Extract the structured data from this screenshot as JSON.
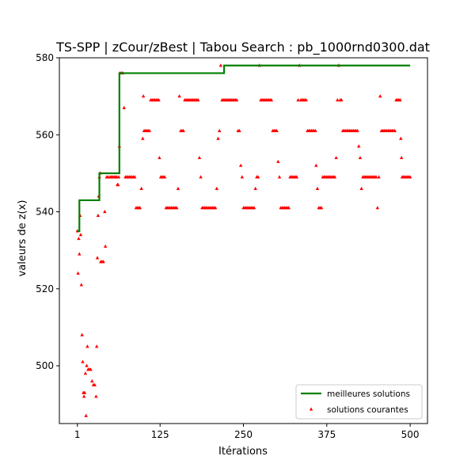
{
  "chart_data": {
    "type": "scatter",
    "title": "TS-SPP | zCour/zBest | Tabou Search : pb_1000rnd0300.dat",
    "xlabel": "Itérations",
    "ylabel": "valeurs de z(x)",
    "xlim": [
      -26,
      526
    ],
    "ylim": [
      485,
      580
    ],
    "xticks": [
      1,
      125,
      250,
      375,
      500
    ],
    "xtick_labels": [
      "1",
      "125",
      "250",
      "375",
      "500"
    ],
    "yticks": [
      500,
      520,
      540,
      560,
      580
    ],
    "ytick_labels": [
      "500",
      "520",
      "540",
      "560",
      "580"
    ],
    "grid": false,
    "legend_position": "lower-right",
    "series": [
      {
        "name": "meilleures solutions",
        "kind": "step-line",
        "color": "#008000",
        "steps": [
          [
            1,
            535
          ],
          [
            4,
            543
          ],
          [
            34,
            550
          ],
          [
            64,
            576
          ],
          [
            221,
            578
          ],
          [
            500,
            578
          ]
        ]
      },
      {
        "name": "solutions courantes",
        "kind": "markers",
        "color": "#ff0000",
        "points": [
          [
            1,
            535
          ],
          [
            2,
            524
          ],
          [
            3,
            533
          ],
          [
            4,
            529
          ],
          [
            5,
            539
          ],
          [
            6,
            534
          ],
          [
            7,
            521
          ],
          [
            8,
            508
          ],
          [
            9,
            501
          ],
          [
            10,
            493
          ],
          [
            11,
            492
          ],
          [
            12,
            493
          ],
          [
            13,
            498
          ],
          [
            14,
            487
          ],
          [
            15,
            500
          ],
          [
            16,
            505
          ],
          [
            17,
            499
          ],
          [
            18,
            499
          ],
          [
            20,
            499
          ],
          [
            21,
            499
          ],
          [
            23,
            496
          ],
          [
            25,
            495
          ],
          [
            27,
            495
          ],
          [
            29,
            492
          ],
          [
            30,
            505
          ],
          [
            31,
            528
          ],
          [
            32,
            539
          ],
          [
            33,
            544
          ],
          [
            34,
            549
          ],
          [
            35,
            550
          ],
          [
            36,
            527
          ],
          [
            38,
            527
          ],
          [
            40,
            527
          ],
          [
            42,
            540
          ],
          [
            43,
            531
          ],
          [
            45,
            549
          ],
          [
            47,
            549
          ],
          [
            50,
            549
          ],
          [
            52,
            549
          ],
          [
            54,
            549
          ],
          [
            56,
            549
          ],
          [
            58,
            549
          ],
          [
            60,
            549
          ],
          [
            61,
            547
          ],
          [
            62,
            547
          ],
          [
            63,
            549
          ],
          [
            64,
            557
          ],
          [
            65,
            576
          ],
          [
            67,
            576
          ],
          [
            69,
            576
          ],
          [
            71,
            567
          ],
          [
            73,
            549
          ],
          [
            75,
            549
          ],
          [
            77,
            549
          ],
          [
            79,
            549
          ],
          [
            81,
            549
          ],
          [
            83,
            549
          ],
          [
            85,
            549
          ],
          [
            87,
            549
          ],
          [
            89,
            541
          ],
          [
            91,
            541
          ],
          [
            93,
            541
          ],
          [
            95,
            541
          ],
          [
            97,
            546
          ],
          [
            99,
            559
          ],
          [
            100,
            570
          ],
          [
            101,
            561
          ],
          [
            103,
            561
          ],
          [
            105,
            561
          ],
          [
            107,
            561
          ],
          [
            109,
            561
          ],
          [
            111,
            569
          ],
          [
            113,
            569
          ],
          [
            115,
            569
          ],
          [
            117,
            569
          ],
          [
            119,
            569
          ],
          [
            121,
            569
          ],
          [
            123,
            569
          ],
          [
            124,
            554
          ],
          [
            126,
            549
          ],
          [
            128,
            549
          ],
          [
            130,
            549
          ],
          [
            132,
            549
          ],
          [
            134,
            541
          ],
          [
            136,
            541
          ],
          [
            138,
            541
          ],
          [
            140,
            541
          ],
          [
            142,
            541
          ],
          [
            144,
            541
          ],
          [
            146,
            541
          ],
          [
            148,
            541
          ],
          [
            150,
            541
          ],
          [
            152,
            546
          ],
          [
            154,
            570
          ],
          [
            156,
            561
          ],
          [
            158,
            561
          ],
          [
            160,
            561
          ],
          [
            162,
            569
          ],
          [
            164,
            569
          ],
          [
            166,
            569
          ],
          [
            168,
            569
          ],
          [
            170,
            569
          ],
          [
            172,
            569
          ],
          [
            174,
            569
          ],
          [
            176,
            569
          ],
          [
            178,
            569
          ],
          [
            180,
            569
          ],
          [
            182,
            569
          ],
          [
            184,
            554
          ],
          [
            186,
            549
          ],
          [
            188,
            541
          ],
          [
            190,
            541
          ],
          [
            192,
            541
          ],
          [
            194,
            541
          ],
          [
            196,
            541
          ],
          [
            198,
            541
          ],
          [
            200,
            541
          ],
          [
            202,
            541
          ],
          [
            204,
            541
          ],
          [
            206,
            541
          ],
          [
            208,
            541
          ],
          [
            210,
            546
          ],
          [
            212,
            559
          ],
          [
            214,
            561
          ],
          [
            216,
            578
          ],
          [
            218,
            569
          ],
          [
            220,
            569
          ],
          [
            222,
            569
          ],
          [
            224,
            569
          ],
          [
            226,
            569
          ],
          [
            228,
            569
          ],
          [
            230,
            569
          ],
          [
            232,
            569
          ],
          [
            234,
            569
          ],
          [
            236,
            569
          ],
          [
            238,
            569
          ],
          [
            240,
            569
          ],
          [
            242,
            561
          ],
          [
            244,
            561
          ],
          [
            246,
            552
          ],
          [
            248,
            549
          ],
          [
            250,
            541
          ],
          [
            252,
            541
          ],
          [
            254,
            541
          ],
          [
            256,
            541
          ],
          [
            258,
            541
          ],
          [
            260,
            541
          ],
          [
            262,
            541
          ],
          [
            264,
            541
          ],
          [
            266,
            541
          ],
          [
            268,
            546
          ],
          [
            270,
            549
          ],
          [
            272,
            549
          ],
          [
            274,
            578
          ],
          [
            276,
            569
          ],
          [
            278,
            569
          ],
          [
            280,
            569
          ],
          [
            282,
            569
          ],
          [
            284,
            569
          ],
          [
            286,
            569
          ],
          [
            288,
            569
          ],
          [
            290,
            569
          ],
          [
            292,
            569
          ],
          [
            294,
            561
          ],
          [
            296,
            561
          ],
          [
            298,
            561
          ],
          [
            300,
            561
          ],
          [
            302,
            553
          ],
          [
            304,
            549
          ],
          [
            306,
            541
          ],
          [
            308,
            541
          ],
          [
            310,
            541
          ],
          [
            312,
            541
          ],
          [
            314,
            541
          ],
          [
            316,
            541
          ],
          [
            318,
            541
          ],
          [
            320,
            549
          ],
          [
            322,
            549
          ],
          [
            324,
            549
          ],
          [
            326,
            549
          ],
          [
            328,
            549
          ],
          [
            330,
            549
          ],
          [
            332,
            569
          ],
          [
            334,
            578
          ],
          [
            336,
            569
          ],
          [
            338,
            569
          ],
          [
            340,
            569
          ],
          [
            342,
            569
          ],
          [
            344,
            569
          ],
          [
            346,
            561
          ],
          [
            348,
            561
          ],
          [
            350,
            561
          ],
          [
            352,
            561
          ],
          [
            354,
            561
          ],
          [
            356,
            561
          ],
          [
            358,
            561
          ],
          [
            359,
            552
          ],
          [
            361,
            546
          ],
          [
            363,
            541
          ],
          [
            365,
            541
          ],
          [
            367,
            541
          ],
          [
            369,
            549
          ],
          [
            371,
            549
          ],
          [
            373,
            549
          ],
          [
            375,
            549
          ],
          [
            377,
            549
          ],
          [
            379,
            549
          ],
          [
            381,
            549
          ],
          [
            383,
            549
          ],
          [
            385,
            549
          ],
          [
            387,
            549
          ],
          [
            389,
            554
          ],
          [
            391,
            569
          ],
          [
            393,
            578
          ],
          [
            395,
            569
          ],
          [
            397,
            569
          ],
          [
            399,
            561
          ],
          [
            401,
            561
          ],
          [
            403,
            561
          ],
          [
            405,
            561
          ],
          [
            407,
            561
          ],
          [
            409,
            561
          ],
          [
            411,
            561
          ],
          [
            413,
            561
          ],
          [
            415,
            561
          ],
          [
            417,
            561
          ],
          [
            419,
            561
          ],
          [
            421,
            561
          ],
          [
            423,
            557
          ],
          [
            425,
            554
          ],
          [
            427,
            546
          ],
          [
            429,
            549
          ],
          [
            431,
            549
          ],
          [
            433,
            549
          ],
          [
            435,
            549
          ],
          [
            437,
            549
          ],
          [
            439,
            549
          ],
          [
            441,
            549
          ],
          [
            443,
            549
          ],
          [
            445,
            549
          ],
          [
            447,
            549
          ],
          [
            449,
            549
          ],
          [
            451,
            541
          ],
          [
            453,
            549
          ],
          [
            455,
            570
          ],
          [
            457,
            561
          ],
          [
            459,
            561
          ],
          [
            461,
            561
          ],
          [
            463,
            561
          ],
          [
            465,
            561
          ],
          [
            467,
            561
          ],
          [
            469,
            561
          ],
          [
            471,
            561
          ],
          [
            473,
            561
          ],
          [
            475,
            561
          ],
          [
            477,
            561
          ],
          [
            479,
            569
          ],
          [
            481,
            569
          ],
          [
            483,
            569
          ],
          [
            485,
            569
          ],
          [
            486,
            559
          ],
          [
            487,
            554
          ],
          [
            488,
            549
          ],
          [
            490,
            549
          ],
          [
            492,
            549
          ],
          [
            494,
            549
          ],
          [
            496,
            549
          ],
          [
            498,
            549
          ],
          [
            500,
            549
          ]
        ]
      }
    ]
  }
}
